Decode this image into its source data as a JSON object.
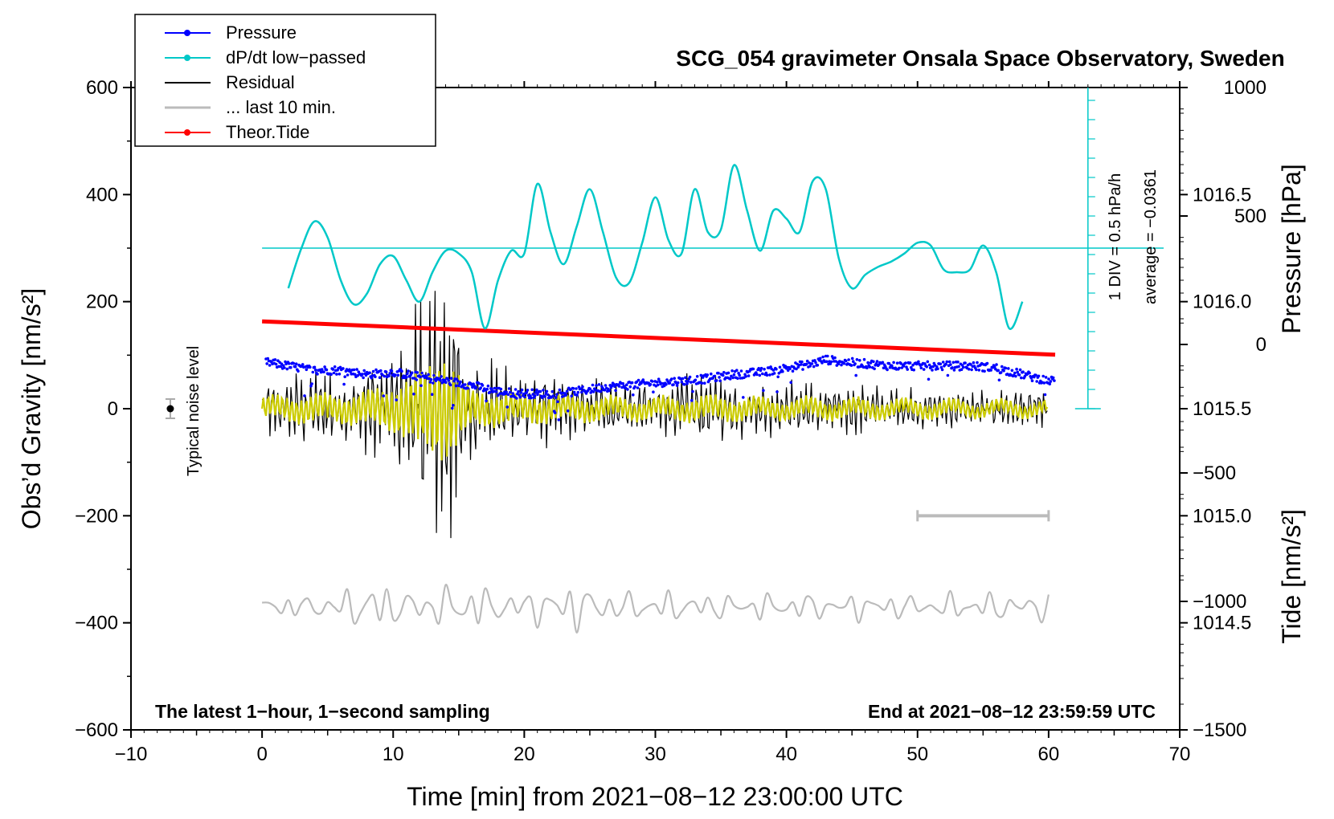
{
  "chart_data": {
    "type": "line",
    "title": "SCG_054 gravimeter Onsala Space Observatory, Sweden",
    "xlabel": "Time [min] from 2021−08−12 23:00:00 UTC",
    "ylabel_left": "Obs’d Gravity [nm/s²]",
    "ylabel_right_top": "Pressure [hPa]",
    "ylabel_right_bottom": "Tide [nm/s²]",
    "xlim": [
      -10,
      70
    ],
    "ylim_left": [
      -600,
      600
    ],
    "ylim_pressure": [
      1014.0,
      1017.0
    ],
    "ylim_tide": [
      -1500,
      1000
    ],
    "x_ticks": [
      "−10",
      "0",
      "10",
      "20",
      "30",
      "40",
      "50",
      "60",
      "70"
    ],
    "x_tick_values": [
      -10,
      0,
      10,
      20,
      30,
      40,
      50,
      60,
      70
    ],
    "y_left_ticks": [
      "600",
      "400",
      "200",
      "0",
      "−200",
      "−400",
      "−600"
    ],
    "y_left_tick_values": [
      600,
      400,
      200,
      0,
      -200,
      -400,
      -600
    ],
    "y_pressure_ticks": [
      "1016.5",
      "1016.0",
      "1015.5",
      "1015.0",
      "1014.5"
    ],
    "y_pressure_tick_values": [
      1016.5,
      1016.0,
      1015.5,
      1015.0,
      1014.5
    ],
    "y_tide_ticks": [
      "1000",
      "500",
      "0",
      "−500",
      "−1000",
      "−1500"
    ],
    "y_tide_tick_values": [
      1000,
      500,
      0,
      -500,
      -1000,
      -1500
    ],
    "legend": {
      "placement": "top-left",
      "entries": [
        {
          "label": "Pressure",
          "color": "#0000ff",
          "marker": true
        },
        {
          "label": "dP/dt low−passed",
          "color": "#00c8c8",
          "marker": true
        },
        {
          "label": "Residual",
          "color": "#000000",
          "marker": false
        },
        {
          "label": "... last 10 min.",
          "color": "#bbbbbb",
          "marker": false
        },
        {
          "label": "Theor.Tide",
          "color": "#ff0000",
          "marker": true
        }
      ]
    },
    "annotations": {
      "bottom_left": "The latest 1−hour, 1−second sampling",
      "bottom_right": "End at 2021−08−12 23:59:59 UTC",
      "noise_label": "Typical noise level",
      "scale_div": "1 DIV = 0.5 hPa/h",
      "scale_avg": "average = −0.0361"
    },
    "noise_level": {
      "x": -7,
      "y": 0,
      "err": 18
    },
    "last10_bar": {
      "x_start": 50,
      "x_end": 60,
      "y": -200
    },
    "dpdt_zero_line": 300,
    "dpdt_scale": {
      "x": 63,
      "y_bottom": 0,
      "y_top": 600,
      "div_nm": 36
    },
    "series": [
      {
        "name": "Pressure",
        "color": "#0000ff",
        "axis": "pressure",
        "x": [
          0,
          2,
          4,
          6,
          8,
          10,
          12,
          14,
          16,
          18,
          20,
          22,
          24,
          26,
          28,
          30,
          32,
          34,
          36,
          38,
          40,
          42,
          43,
          44,
          46,
          48,
          50,
          52,
          54,
          56,
          58,
          60
        ],
        "values": [
          1015.72,
          1015.7,
          1015.68,
          1015.68,
          1015.66,
          1015.67,
          1015.65,
          1015.63,
          1015.61,
          1015.58,
          1015.57,
          1015.57,
          1015.58,
          1015.6,
          1015.61,
          1015.62,
          1015.63,
          1015.64,
          1015.66,
          1015.67,
          1015.69,
          1015.71,
          1015.73,
          1015.72,
          1015.71,
          1015.7,
          1015.7,
          1015.7,
          1015.7,
          1015.69,
          1015.66,
          1015.63
        ],
        "scatter": 0.04
      },
      {
        "name": "dP/dt low−passed",
        "color": "#00c8c8",
        "axis": "left",
        "x": [
          2,
          3,
          4,
          5,
          6,
          7,
          8,
          9,
          10,
          11,
          12,
          13,
          14,
          15,
          16,
          17,
          18,
          19,
          20,
          21,
          22,
          23,
          24,
          25,
          26,
          27,
          28,
          29,
          30,
          31,
          32,
          33,
          34,
          35,
          36,
          37,
          38,
          39,
          40,
          41,
          42,
          43,
          44,
          45,
          46,
          47,
          48,
          49,
          50,
          51,
          52,
          53,
          54,
          55,
          56,
          57,
          58
        ],
        "values": [
          225,
          300,
          350,
          320,
          240,
          195,
          215,
          270,
          285,
          240,
          200,
          255,
          295,
          290,
          255,
          150,
          240,
          295,
          290,
          420,
          330,
          270,
          340,
          410,
          330,
          245,
          235,
          310,
          395,
          315,
          290,
          410,
          330,
          335,
          455,
          370,
          295,
          370,
          355,
          330,
          425,
          410,
          280,
          225,
          250,
          265,
          275,
          290,
          310,
          305,
          260,
          255,
          260,
          305,
          255,
          150,
          200
        ]
      },
      {
        "name": "Residual",
        "color": "#000000",
        "axis": "left",
        "x": [
          0,
          2,
          4,
          6,
          8,
          10,
          11,
          12,
          13,
          14,
          15,
          16,
          18,
          20,
          22,
          24,
          26,
          28,
          30,
          32,
          34,
          36,
          38,
          40,
          42,
          44,
          46,
          48,
          50,
          52,
          54,
          56,
          58,
          60
        ],
        "amplitude": [
          55,
          60,
          70,
          65,
          85,
          110,
          150,
          190,
          230,
          270,
          180,
          90,
          80,
          70,
          65,
          60,
          55,
          50,
          50,
          55,
          60,
          55,
          50,
          45,
          50,
          45,
          45,
          40,
          40,
          40,
          35,
          35,
          35,
          30
        ]
      },
      {
        "name": "... last 10 min.",
        "color": "#bbbbbb",
        "axis": "left",
        "center": -370,
        "x": [
          0,
          2,
          4,
          6,
          8,
          10,
          12,
          14,
          16,
          18,
          20,
          22,
          24,
          26,
          28,
          30,
          32,
          34,
          36,
          38,
          40,
          42,
          44,
          46,
          48,
          50,
          52,
          54,
          56,
          58,
          60
        ],
        "amplitude": [
          18,
          22,
          26,
          30,
          55,
          40,
          38,
          45,
          45,
          35,
          38,
          42,
          48,
          40,
          32,
          30,
          30,
          30,
          28,
          26,
          28,
          30,
          25,
          28,
          26,
          28,
          26,
          28,
          30,
          34,
          28
        ]
      },
      {
        "name": "Theor.Tide",
        "color": "#ff0000",
        "axis": "tide",
        "x": [
          0,
          60.5
        ],
        "values": [
          90,
          -40
        ]
      }
    ]
  }
}
